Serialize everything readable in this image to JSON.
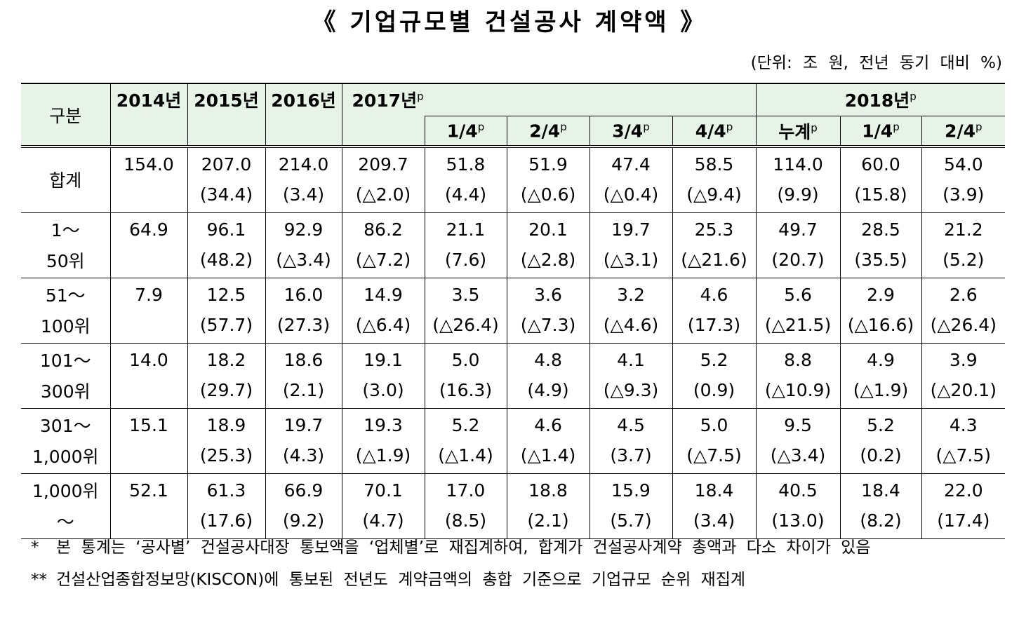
{
  "title": "《 기업규모별 건설공사 계약액 》",
  "unit": "(단위: 조 원, 전년 동기 대비 %)",
  "table": {
    "stub": "구분",
    "columns": [
      {
        "text": "2014년"
      },
      {
        "text": "2015년"
      },
      {
        "text": "2016년"
      },
      {
        "text": "2017년",
        "sup": "p",
        "sub": [
          {
            "text": "1/4",
            "sup": "p"
          },
          {
            "text": "2/4",
            "sup": "p"
          },
          {
            "text": "3/4",
            "sup": "p"
          },
          {
            "text": "4/4",
            "sup": "p"
          }
        ]
      },
      {
        "text": "2018년",
        "sup": "p",
        "sub": [
          {
            "text": "누계",
            "sup": "p"
          },
          {
            "text": "1/4",
            "sup": "p"
          },
          {
            "text": "2/4",
            "sup": "p"
          }
        ]
      }
    ],
    "rows": [
      {
        "label": [
          "합계"
        ],
        "cells": [
          [
            "154.0"
          ],
          [
            "207.0",
            "(34.4)"
          ],
          [
            "214.0",
            "(3.4)"
          ],
          [
            "209.7",
            "(△2.0)"
          ],
          [
            "51.8",
            "(4.4)"
          ],
          [
            "51.9",
            "(△0.6)"
          ],
          [
            "47.4",
            "(△0.4)"
          ],
          [
            "58.5",
            "(△9.4)"
          ],
          [
            "114.0",
            "(9.9)"
          ],
          [
            "60.0",
            "(15.8)"
          ],
          [
            "54.0",
            "(3.9)"
          ]
        ]
      },
      {
        "label": [
          "1～",
          "50위"
        ],
        "cells": [
          [
            "64.9"
          ],
          [
            "96.1",
            "(48.2)"
          ],
          [
            "92.9",
            "(△3.4)"
          ],
          [
            "86.2",
            "(△7.2)"
          ],
          [
            "21.1",
            "(7.6)"
          ],
          [
            "20.1",
            "(△2.8)"
          ],
          [
            "19.7",
            "(△3.1)"
          ],
          [
            "25.3",
            "(△21.6)"
          ],
          [
            "49.7",
            "(20.7)"
          ],
          [
            "28.5",
            "(35.5)"
          ],
          [
            "21.2",
            "(5.2)"
          ]
        ]
      },
      {
        "label": [
          "51～",
          "100위"
        ],
        "cells": [
          [
            "7.9"
          ],
          [
            "12.5",
            "(57.7)"
          ],
          [
            "16.0",
            "(27.3)"
          ],
          [
            "14.9",
            "(△6.4)"
          ],
          [
            "3.5",
            "(△26.4)"
          ],
          [
            "3.6",
            "(△7.3)"
          ],
          [
            "3.2",
            "(△4.6)"
          ],
          [
            "4.6",
            "(17.3)"
          ],
          [
            "5.6",
            "(△21.5)"
          ],
          [
            "2.9",
            "(△16.6)"
          ],
          [
            "2.6",
            "(△26.4)"
          ]
        ]
      },
      {
        "label": [
          "101～",
          "300위"
        ],
        "cells": [
          [
            "14.0"
          ],
          [
            "18.2",
            "(29.7)"
          ],
          [
            "18.6",
            "(2.1)"
          ],
          [
            "19.1",
            "(3.0)"
          ],
          [
            "5.0",
            "(16.3)"
          ],
          [
            "4.8",
            "(4.9)"
          ],
          [
            "4.1",
            "(△9.3)"
          ],
          [
            "5.2",
            "(0.9)"
          ],
          [
            "8.8",
            "(△10.9)"
          ],
          [
            "4.9",
            "(△1.9)"
          ],
          [
            "3.9",
            "(△20.1)"
          ]
        ]
      },
      {
        "label": [
          "301～",
          "1,000위"
        ],
        "cells": [
          [
            "15.1"
          ],
          [
            "18.9",
            "(25.3)"
          ],
          [
            "19.7",
            "(4.3)"
          ],
          [
            "19.3",
            "(△1.9)"
          ],
          [
            "5.2",
            "(△1.4)"
          ],
          [
            "4.6",
            "(△1.4)"
          ],
          [
            "4.5",
            "(3.7)"
          ],
          [
            "5.0",
            "(△7.5)"
          ],
          [
            "9.5",
            "(△3.4)"
          ],
          [
            "5.2",
            "(0.2)"
          ],
          [
            "4.3",
            "(△7.5)"
          ]
        ]
      },
      {
        "label": [
          "1,000위 ～"
        ],
        "cells": [
          [
            "52.1"
          ],
          [
            "61.3",
            "(17.6)"
          ],
          [
            "66.9",
            "(9.2)"
          ],
          [
            "70.1",
            "(4.7)"
          ],
          [
            "17.0",
            "(8.5)"
          ],
          [
            "18.8",
            "(2.1)"
          ],
          [
            "15.9",
            "(5.7)"
          ],
          [
            "18.4",
            "(3.4)"
          ],
          [
            "40.5",
            "(13.0)"
          ],
          [
            "18.4",
            "(8.2)"
          ],
          [
            "22.0",
            "(17.4)"
          ]
        ]
      }
    ]
  },
  "notes": [
    {
      "marker": "*",
      "text": "본 통계는 ‘공사별’ 건설공사대장 통보액을 ‘업체별’로 재집계하여, 합계가 건설공사계약 총액과 다소 차이가 있음"
    },
    {
      "marker": "**",
      "text": "건설산업종합정보망(KISCON)에 통보된 전년도 계약금액의 총합 기준으로 기업규모 순위 재집계"
    }
  ]
}
